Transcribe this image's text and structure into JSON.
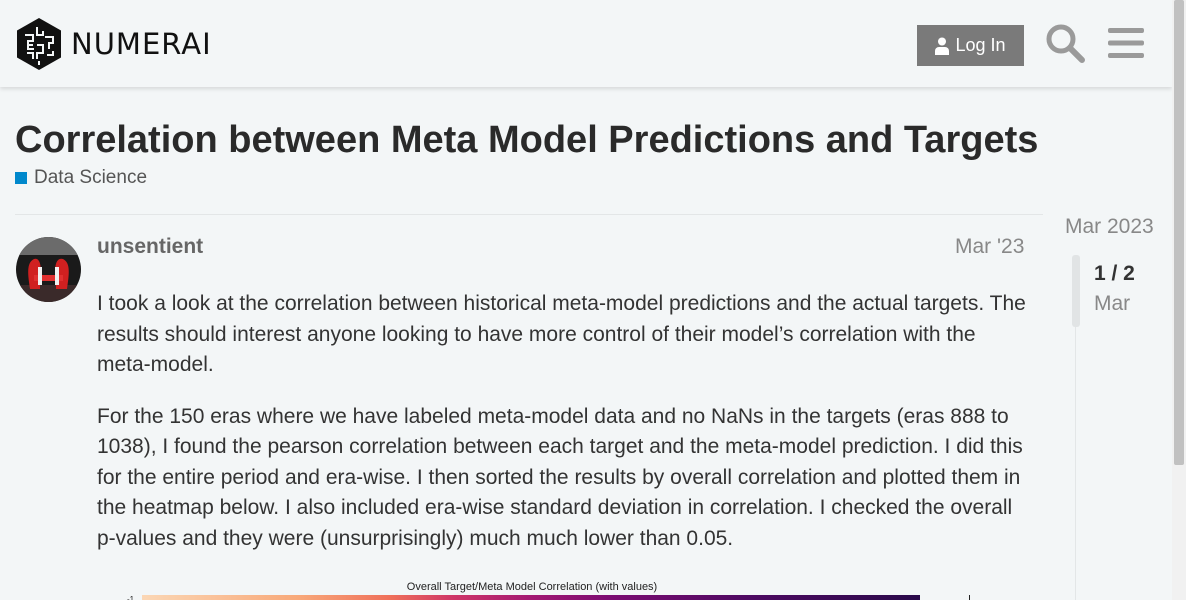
{
  "header": {
    "brand": "NUMERAI",
    "login_label": "Log In",
    "icons": [
      "numerai-logo-icon",
      "user-icon",
      "search-icon",
      "hamburger-menu-icon"
    ]
  },
  "topic": {
    "title": "Correlation between Meta Model Predictions and Targets",
    "category": "Data Science",
    "category_color": "#0088cc"
  },
  "post": {
    "username": "unsentient",
    "date": "Mar '23",
    "paragraphs": [
      "I took a look at the correlation between historical meta-model predictions and the actual targets. The results should interest anyone looking to have more control of their model’s correlation with the meta-model.",
      "For the 150 eras where we have labeled meta-model data and no NaNs in the targets (eras 888 to 1038), I found the pearson correlation between each target and the meta-model prediction. I did this for the entire period and era-wise. I then sorted the results by overall correlation and plotted them in the heatmap below. I also included era-wise standard deviation in correlation. I checked the overall p-values and they were (unsurprisingly) much much lower than 0.05."
    ],
    "chart_title": "Overall Target/Meta Model Correlation (with values)"
  },
  "timeline": {
    "start": "Mar 2023",
    "count": "1 / 2",
    "current": "Mar"
  }
}
